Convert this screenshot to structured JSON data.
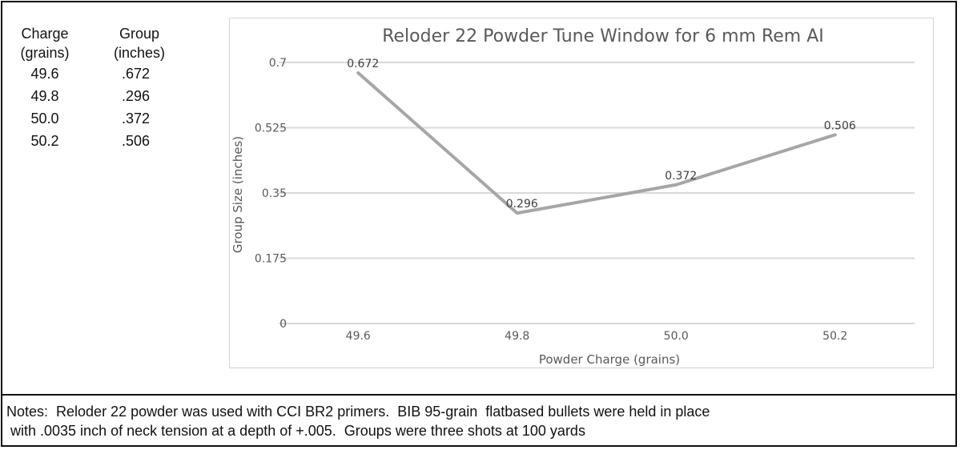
{
  "table": {
    "header_charge_1": "Charge",
    "header_charge_2": "(grains)",
    "header_group_1": "Group",
    "header_group_2": "(inches)",
    "rows": [
      {
        "charge": "49.6",
        "group": ".672"
      },
      {
        "charge": "49.8",
        "group": ".296"
      },
      {
        "charge": "50.0",
        "group": ".372"
      },
      {
        "charge": "50.2",
        "group": ".506"
      }
    ]
  },
  "chart_data": {
    "type": "line",
    "title": "Reloder 22 Powder Tune Window for 6 mm Rem AI",
    "xlabel": "Powder Charge (grains)",
    "ylabel": "Group Size (inches)",
    "categories": [
      "49.6",
      "49.8",
      "50.0",
      "50.2"
    ],
    "series": [
      {
        "values": [
          0.672,
          0.296,
          0.372,
          0.506
        ],
        "data_labels": [
          "0.672",
          "0.296",
          "0.372",
          "0.506"
        ]
      }
    ],
    "ylim": [
      0,
      0.7
    ],
    "yticks": [
      0,
      0.175,
      0.35,
      0.525,
      0.7
    ],
    "ytick_labels": [
      "0",
      "0.175",
      "0.35",
      "0.525",
      "0.7"
    ],
    "grid": true,
    "line_color": "#a6a6a6"
  },
  "notes": {
    "line1": "Notes:  Reloder 22 powder was used with CCI BR2 primers.  BIB 95-grain  flatbased bullets were held in place",
    "line2": " with .0035 inch of neck tension at a depth of +.005.  Groups were three shots at 100 yards"
  }
}
